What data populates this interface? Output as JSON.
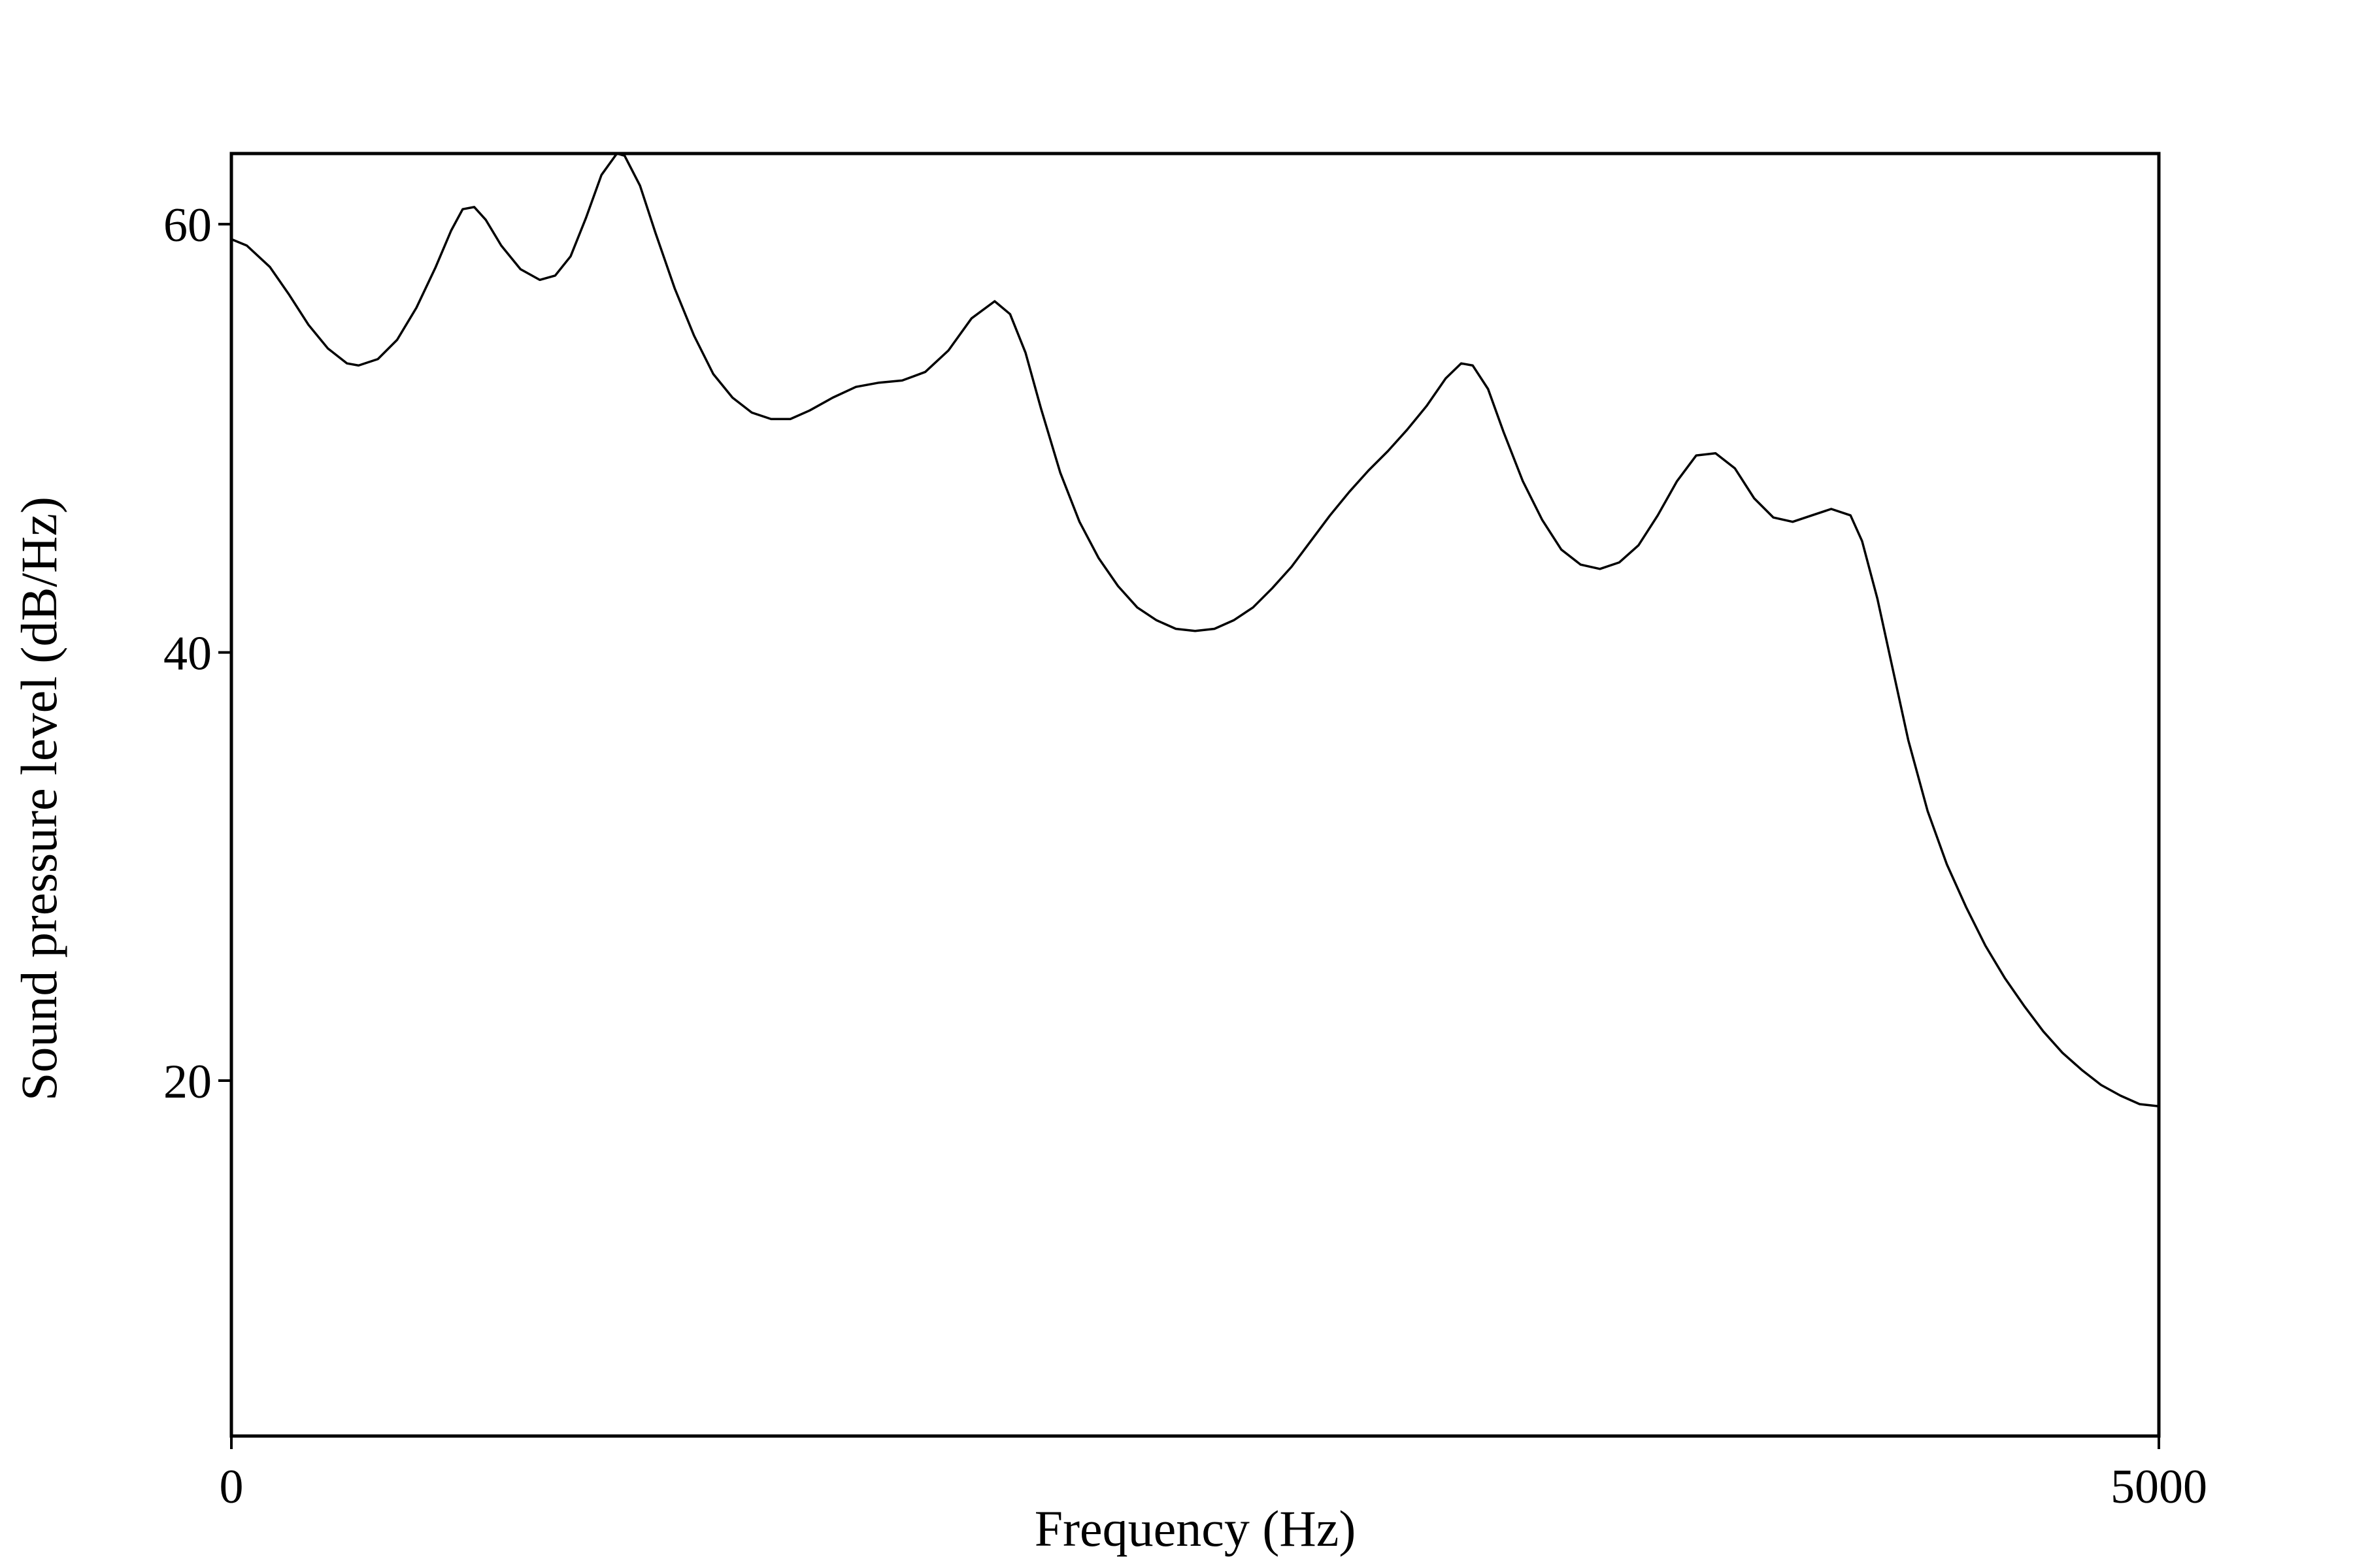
{
  "chart_data": {
    "type": "line",
    "title": "",
    "xlabel": "Frequency (Hz)",
    "ylabel": "Sound pressure level (dB/Hz)",
    "xlim": [
      0,
      5000
    ],
    "ylim": [
      3.4,
      63.3
    ],
    "xticks": [
      {
        "value": 0,
        "label": "0"
      },
      {
        "value": 5000,
        "label": "5000"
      }
    ],
    "yticks": [
      {
        "value": 20,
        "label": "20"
      },
      {
        "value": 40,
        "label": "40"
      },
      {
        "value": 60,
        "label": "60"
      }
    ],
    "grid": false,
    "legend": "none",
    "colors": {
      "line": "#000000",
      "frame": "#000000",
      "background": "#ffffff"
    },
    "series": [
      {
        "values": [
          [
            0,
            59.3
          ],
          [
            40,
            59.0
          ],
          [
            100,
            58.0
          ],
          [
            150,
            56.7
          ],
          [
            200,
            55.3
          ],
          [
            250,
            54.2
          ],
          [
            300,
            53.5
          ],
          [
            330,
            53.4
          ],
          [
            380,
            53.7
          ],
          [
            430,
            54.6
          ],
          [
            480,
            56.1
          ],
          [
            530,
            58.0
          ],
          [
            570,
            59.7
          ],
          [
            600,
            60.7
          ],
          [
            630,
            60.8
          ],
          [
            660,
            60.2
          ],
          [
            700,
            59.0
          ],
          [
            750,
            57.9
          ],
          [
            800,
            57.4
          ],
          [
            840,
            57.6
          ],
          [
            880,
            58.5
          ],
          [
            920,
            60.3
          ],
          [
            960,
            62.3
          ],
          [
            1000,
            63.3
          ],
          [
            1020,
            63.2
          ],
          [
            1060,
            61.8
          ],
          [
            1100,
            59.6
          ],
          [
            1150,
            57.0
          ],
          [
            1200,
            54.8
          ],
          [
            1250,
            53.0
          ],
          [
            1300,
            51.9
          ],
          [
            1350,
            51.2
          ],
          [
            1400,
            50.9
          ],
          [
            1450,
            50.9
          ],
          [
            1500,
            51.3
          ],
          [
            1560,
            51.9
          ],
          [
            1620,
            52.4
          ],
          [
            1680,
            52.6
          ],
          [
            1740,
            52.7
          ],
          [
            1800,
            53.1
          ],
          [
            1860,
            54.1
          ],
          [
            1920,
            55.6
          ],
          [
            1980,
            56.4
          ],
          [
            2020,
            55.8
          ],
          [
            2060,
            54.0
          ],
          [
            2100,
            51.4
          ],
          [
            2150,
            48.4
          ],
          [
            2200,
            46.1
          ],
          [
            2250,
            44.4
          ],
          [
            2300,
            43.1
          ],
          [
            2350,
            42.1
          ],
          [
            2400,
            41.5
          ],
          [
            2450,
            41.1
          ],
          [
            2500,
            41.0
          ],
          [
            2550,
            41.1
          ],
          [
            2600,
            41.5
          ],
          [
            2650,
            42.1
          ],
          [
            2700,
            43.0
          ],
          [
            2750,
            44.0
          ],
          [
            2800,
            45.2
          ],
          [
            2850,
            46.4
          ],
          [
            2900,
            47.5
          ],
          [
            2950,
            48.5
          ],
          [
            3000,
            49.4
          ],
          [
            3050,
            50.4
          ],
          [
            3100,
            51.5
          ],
          [
            3150,
            52.8
          ],
          [
            3190,
            53.5
          ],
          [
            3220,
            53.4
          ],
          [
            3260,
            52.3
          ],
          [
            3300,
            50.3
          ],
          [
            3350,
            48.0
          ],
          [
            3400,
            46.2
          ],
          [
            3450,
            44.8
          ],
          [
            3500,
            44.1
          ],
          [
            3550,
            43.9
          ],
          [
            3600,
            44.2
          ],
          [
            3650,
            45.0
          ],
          [
            3700,
            46.4
          ],
          [
            3750,
            48.0
          ],
          [
            3800,
            49.2
          ],
          [
            3850,
            49.3
          ],
          [
            3900,
            48.6
          ],
          [
            3950,
            47.2
          ],
          [
            4000,
            46.3
          ],
          [
            4050,
            46.1
          ],
          [
            4100,
            46.4
          ],
          [
            4150,
            46.7
          ],
          [
            4200,
            46.4
          ],
          [
            4230,
            45.2
          ],
          [
            4270,
            42.5
          ],
          [
            4310,
            39.2
          ],
          [
            4350,
            35.9
          ],
          [
            4400,
            32.6
          ],
          [
            4450,
            30.1
          ],
          [
            4500,
            28.1
          ],
          [
            4550,
            26.3
          ],
          [
            4600,
            24.8
          ],
          [
            4650,
            23.5
          ],
          [
            4700,
            22.3
          ],
          [
            4750,
            21.3
          ],
          [
            4800,
            20.5
          ],
          [
            4850,
            19.8
          ],
          [
            4900,
            19.3
          ],
          [
            4950,
            18.9
          ],
          [
            5000,
            18.8
          ]
        ]
      }
    ]
  }
}
